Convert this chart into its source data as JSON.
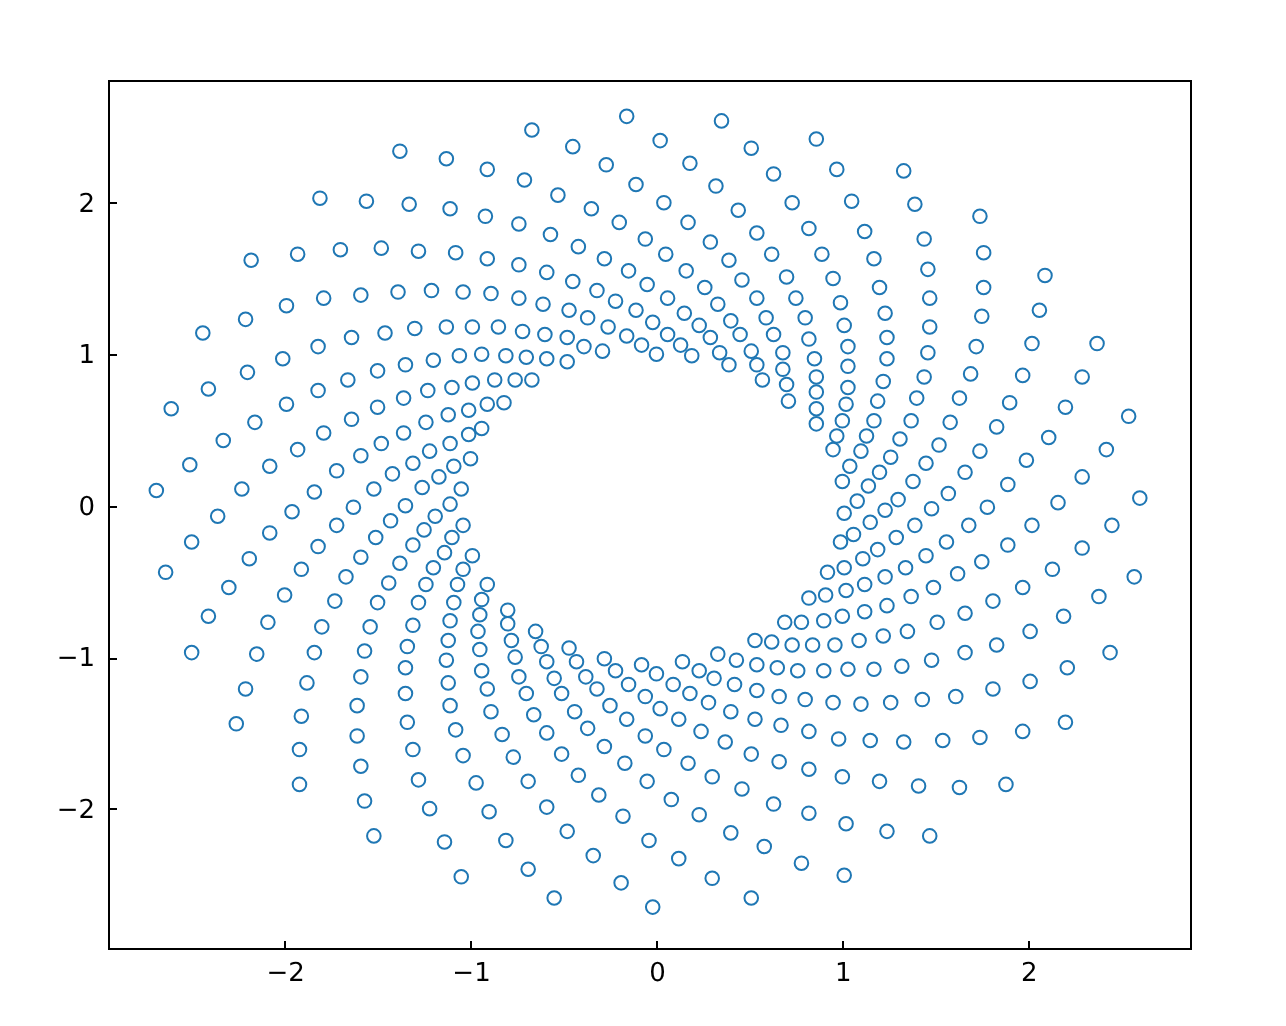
{
  "chart_data": {
    "type": "scatter",
    "color": "#1f77b4",
    "marker": "circle",
    "xlim": [
      -2.95,
      2.87
    ],
    "ylim": [
      -2.92,
      2.81
    ],
    "xticks": [
      -2,
      -1,
      0,
      1,
      2
    ],
    "yticks": [
      -2,
      -1,
      0,
      1,
      2
    ],
    "x": [
      -1.38,
      -1.13,
      -1.81,
      -1.56,
      -1.33,
      -1.11,
      -2.18,
      -1.93,
      -1.7,
      -1.48,
      -1.28,
      -1.08,
      -2.44,
      -2.21,
      -1.99,
      -1.79,
      -1.59,
      -1.39,
      -1.21,
      -1.04,
      -2.61,
      -2.41,
      -2.2,
      -2.01,
      -1.82,
      -1.64,
      -1.46,
      -1.3,
      -1.13,
      -0.99,
      -2.33,
      -2.16,
      -1.99,
      -1.82,
      -1.66,
      -1.5,
      -1.35,
      -1.2,
      -1.06,
      -2.51,
      -2.08,
      -1.93,
      -1.79,
      -1.64,
      -1.5,
      -1.36,
      -1.23,
      -1.1,
      -0.99,
      -1.01,
      -1.12,
      -1.24,
      -1.36,
      -1.48,
      -1.59,
      -1.72,
      -1.84,
      -1.01,
      -1.11,
      -1.22,
      -1.31,
      -1.42,
      -1.52,
      -1.0,
      -1.09,
      -1.17,
      -1.26,
      -1.05,
      -2.69,
      -2.23,
      -0.91,
      -0.67,
      -0.45,
      -0.16,
      0.02,
      0.35,
      0.51,
      0.86,
      -0.71,
      -0.27,
      -0.53,
      -0.11,
      0.18,
      0.32,
      0.63,
      -0.92,
      -0.74,
      -0.35,
      0.04,
      0.44,
      0.73,
      -0.57,
      -0.2,
      -0.06,
      0.17,
      0.54,
      0.82,
      -0.91,
      -0.74,
      -0.42,
      -0.28,
      0.05,
      0.29,
      0.39,
      0.62,
      0.89,
      -0.89,
      -0.59,
      -0.45,
      -0.15,
      0.16,
      0.46,
      0.7,
      0.95,
      -0.32,
      -0.05,
      0.26,
      0.54,
      0.75,
      -0.74,
      -0.61,
      -0.47,
      -0.22,
      0.06,
      0.33,
      0.59,
      0.8,
      -0.85,
      -0.72,
      -0.6,
      -0.48,
      -0.37,
      -0.26,
      -0.11,
      -0.02,
      0.15,
      0.23,
      0.4,
      0.45,
      0.63,
      0.82,
      -0.16,
      -0.39,
      -0.29,
      -0.08,
      0.06,
      0.13,
      0.29,
      0.34,
      0.51,
      0.68,
      0.85,
      0.0,
      0.19,
      0.39,
      0.54,
      0.68,
      0.86,
      -0.94,
      -0.81,
      -0.7,
      -0.59,
      -0.48,
      0.57,
      0.7,
      0.86,
      -0.87,
      -0.76,
      -0.67,
      0.71,
      0.86,
      -0.91,
      -0.82,
      0.86,
      -0.94,
      0.97,
      1.33,
      1.05,
      1.39,
      1.74,
      1.12,
      1.44,
      1.76,
      1.17,
      1.46,
      2.09,
      1.2,
      1.47,
      1.76,
      0.99,
      1.23,
      1.47,
      1.75,
      2.06,
      1.01,
      1.24,
      1.46,
      1.72,
      2.02,
      2.37,
      1.03,
      1.24,
      1.44,
      1.69,
      1.97,
      2.29,
      1.03,
      1.22,
      1.4,
      1.63,
      1.9,
      2.2,
      2.54,
      1.03,
      1.19,
      1.37,
      1.58,
      1.83,
      2.11,
      2.42,
      1.02,
      1.17,
      1.31,
      1.52,
      1.74,
      1.99,
      2.29,
      1.0,
      1.13,
      1.26,
      1.45,
      1.66,
      1.89,
      0.97,
      0.95,
      1.1,
      1.2,
      1.38,
      1.04,
      1.0,
      1.14,
      -2.36,
      -1.96,
      -1.63,
      -1.35,
      -1.19,
      -1.11,
      -2.5,
      -2.08,
      -1.72,
      -1.43,
      -1.25,
      -1.1,
      -1.04,
      -2.64,
      -2.19,
      -1.82,
      -1.51,
      -1.31,
      -1.14,
      -0.99,
      -2.3,
      -1.91,
      -1.59,
      -1.38,
      -1.2,
      -1.04,
      -2.41,
      -2.0,
      -1.67,
      -1.44,
      -1.24,
      -1.07,
      -2.09,
      -1.73,
      -1.5,
      -1.28,
      -1.09,
      -2.5,
      -2.15,
      -1.8,
      -1.54,
      -1.31,
      -1.11,
      -1.84,
      -1.57,
      -1.34,
      -1.12,
      -2.21,
      -1.88,
      -1.59,
      -1.35,
      -1.13,
      -2.26,
      -1.91,
      -1.61,
      -1.35,
      -1.12,
      -1.92,
      -1.61,
      -1.34,
      -1.11,
      -1.92,
      -1.59,
      -1.31,
      -1.08,
      -1.57,
      -1.28,
      -1.04,
      -1.52,
      -1.22,
      -1.14,
      -1.05,
      -0.97,
      -0.91,
      -0.94,
      -0.95,
      -0.96,
      -0.95,
      -0.94,
      -0.91,
      -0.89,
      -0.83,
      -0.77,
      -0.69,
      -0.59,
      -0.48,
      -0.34,
      -0.19,
      -0.02,
      -0.9,
      -0.81,
      -0.69,
      -0.55,
      -0.8,
      -0.8,
      -0.78,
      -0.76,
      -0.74,
      -0.7,
      -0.66,
      -0.59,
      -0.51,
      -0.42,
      -0.31,
      -0.18,
      -0.04,
      0.12,
      0.3,
      0.51,
      -0.65,
      -0.62,
      -0.59,
      -0.55,
      -0.51,
      -0.44,
      -0.37,
      -0.28,
      -0.17,
      -0.05,
      0.08,
      0.23,
      0.4,
      0.58,
      0.78,
      -0.47,
      -0.43,
      -0.38,
      -0.32,
      -0.25,
      -0.16,
      -0.06,
      0.04,
      0.17,
      0.3,
      0.46,
      0.63,
      0.82,
      -0.28,
      -0.22,
      -0.15,
      -0.06,
      0.02,
      0.12,
      0.24,
      0.37,
      0.51,
      0.66,
      0.82,
      -0.08,
      0.0,
      0.09,
      0.18,
      0.28,
      0.4,
      0.53,
      0.67,
      0.82,
      0.14,
      0.23,
      0.31,
      0.42,
      0.54,
      0.66,
      0.8,
      0.33,
      0.43,
      0.54,
      0.65,
      0.76,
      0.9,
      0.53,
      0.62,
      0.73,
      0.84,
      0.69,
      0.78,
      0.9,
      0.82,
      0.91,
      0.92,
      1.01,
      1.08,
      1.3,
      1.57,
      1.48,
      1.78,
      2.16,
      2.6,
      0.99,
      1.06,
      1.15,
      1.23,
      1.29,
      1.39,
      1.68,
      2.02,
      2.45,
      1.01,
      1.11,
      1.19,
      1.34,
      1.45,
      1.56,
      1.75,
      1.89,
      2.29,
      1.02,
      1.12,
      1.23,
      1.37,
      1.49,
      1.62,
      1.81,
      1.97,
      2.13,
      2.57,
      1.0,
      1.12,
      1.24,
      1.51,
      1.66,
      2.01,
      2.19,
      2.38,
      0.96,
      1.09,
      1.22,
      1.35,
      1.48,
      1.66,
      1.83,
      2.21,
      2.44,
      1.03,
      1.17,
      1.32,
      1.61,
      1.81,
      2.01,
      2.2,
      0.95,
      1.1,
      1.26,
      1.43,
      0.98,
      1.15,
      1.33,
      1.54,
      1.74,
      1.97,
      1.0,
      1.2,
      1.41,
      1.63,
      1.88,
      1.02,
      1.24,
      1.47,
      1.01
    ],
    "values": [
      2.34,
      2.29,
      2.03,
      2.01,
      1.99,
      1.96,
      1.62,
      1.66,
      1.69,
      1.7,
      1.68,
      1.67,
      1.14,
      1.23,
      1.32,
      1.37,
      1.39,
      1.41,
      1.42,
      1.41,
      0.64,
      0.77,
      0.88,
      0.97,
      1.05,
      1.11,
      1.14,
      1.17,
      1.18,
      1.18,
      0.43,
      0.55,
      0.67,
      0.76,
      0.83,
      0.89,
      0.93,
      0.96,
      0.99,
      0.27,
      0.26,
      0.37,
      0.48,
      0.57,
      0.65,
      0.71,
      0.76,
      0.78,
      0.81,
      0.63,
      0.6,
      0.55,
      0.48,
      0.41,
      0.33,
      0.23,
      0.09,
      0.47,
      0.41,
      0.36,
      0.28,
      0.21,
      0.11,
      0.31,
      0.26,
      0.19,
      0.12,
      0.11,
      0.1,
      0.11,
      2.22,
      2.48,
      2.37,
      2.57,
      2.41,
      2.54,
      2.36,
      2.42,
      2.15,
      2.25,
      2.05,
      2.12,
      2.26,
      2.11,
      2.19,
      1.91,
      1.86,
      1.96,
      2.0,
      1.95,
      2.0,
      1.79,
      1.87,
      1.76,
      1.87,
      1.8,
      1.83,
      1.63,
      1.59,
      1.71,
      1.63,
      1.66,
      1.74,
      1.62,
      1.66,
      1.66,
      1.4,
      1.54,
      1.48,
      1.55,
      1.55,
      1.49,
      1.51,
      1.5,
      1.42,
      1.46,
      1.44,
      1.37,
      1.37,
      1.37,
      1.33,
      1.29,
      1.35,
      1.37,
      1.33,
      1.24,
      1.24,
      1.18,
      1.15,
      1.13,
      1.11,
      1.24,
      1.18,
      1.29,
      1.21,
      1.27,
      1.19,
      1.22,
      1.13,
      1.13,
      1.1,
      1.12,
      1.05,
      1.02,
      1.06,
      1.13,
      1.06,
      1.11,
      1.01,
      1.02,
      1.01,
      0.97,
      1.0,
      0.99,
      0.93,
      0.93,
      0.9,
      0.85,
      1.0,
      0.99,
      0.98,
      0.97,
      0.95,
      0.83,
      0.8,
      0.75,
      0.83,
      0.83,
      0.83,
      0.69,
      0.64,
      0.67,
      0.68,
      0.54,
      0.51,
      2.22,
      2.21,
      2.01,
      1.99,
      1.91,
      1.81,
      1.76,
      1.67,
      1.63,
      1.56,
      1.52,
      1.44,
      1.37,
      1.44,
      1.34,
      1.27,
      1.18,
      1.25,
      1.29,
      1.19,
      1.11,
      1.01,
      1.05,
      1.07,
      1.07,
      1.05,
      0.97,
      0.85,
      0.87,
      0.86,
      0.85,
      0.92,
      0.82,
      0.71,
      0.71,
      0.68,
      0.65,
      0.59,
      0.78,
      0.69,
      0.56,
      0.55,
      0.52,
      0.45,
      0.37,
      0.67,
      0.56,
      0.44,
      0.4,
      0.36,
      0.3,
      0.19,
      0.56,
      0.46,
      0.32,
      0.28,
      0.22,
      0.14,
      0.46,
      0.37,
      0.36,
      0.22,
      0.16,
      0.26,
      0.16,
      0.13,
      -0.07,
      -0.04,
      -0.01,
      0.0,
      -0.07,
      0.01,
      -0.24,
      -0.18,
      -0.13,
      -0.1,
      -0.16,
      -0.21,
      -0.13,
      -0.44,
      -0.35,
      -0.27,
      -0.21,
      -0.26,
      -0.31,
      -0.33,
      -0.54,
      -0.42,
      -0.34,
      -0.38,
      -0.41,
      -0.42,
      -0.73,
      -0.59,
      -0.47,
      -0.51,
      -0.52,
      -0.52,
      -0.77,
      -0.63,
      -0.64,
      -0.64,
      -0.64,
      -0.97,
      -0.98,
      -0.8,
      -0.8,
      -0.79,
      -0.76,
      -0.97,
      -0.96,
      -0.93,
      -0.89,
      -1.21,
      -1.17,
      -1.13,
      -1.07,
      -1.02,
      -1.44,
      -1.39,
      -1.32,
      -1.24,
      -1.17,
      -1.61,
      -1.52,
      -1.43,
      -1.32,
      -1.84,
      -1.72,
      -1.61,
      -1.48,
      -1.95,
      -1.81,
      -1.65,
      -2.18,
      -2.0,
      -2.22,
      -2.45,
      -1.83,
      -0.52,
      -0.62,
      -0.72,
      -0.83,
      -0.95,
      -1.09,
      -1.21,
      -1.36,
      -1.51,
      -1.66,
      -1.82,
      -1.99,
      -2.15,
      -2.31,
      -2.49,
      -2.65,
      -2.02,
      -2.21,
      -2.4,
      -2.59,
      -0.69,
      -0.78,
      -0.89,
      -1.0,
      -1.13,
      -1.24,
      -1.38,
      -1.5,
      -1.64,
      -1.78,
      -1.91,
      -2.05,
      -2.21,
      -2.33,
      -2.46,
      -2.59,
      -0.83,
      -0.93,
      -1.03,
      -1.14,
      -1.24,
      -1.36,
      -1.47,
      -1.59,
      -1.7,
      -1.82,
      -1.94,
      -2.04,
      -2.16,
      -2.25,
      -2.36,
      -0.94,
      -1.03,
      -1.13,
      -1.21,
      -1.32,
      -1.41,
      -1.52,
      -1.61,
      -1.7,
      -1.79,
      -1.87,
      -1.97,
      -2.03,
      -1.01,
      -1.09,
      -1.18,
      -1.26,
      -1.34,
      -1.41,
      -1.49,
      -1.56,
      -1.64,
      -1.69,
      -1.74,
      -1.05,
      -1.11,
      -1.18,
      -1.24,
      -1.3,
      -1.36,
      -1.41,
      -1.45,
      -1.49,
      -1.03,
      -1.09,
      -1.14,
      -1.18,
      -1.22,
      -1.26,
      -1.28,
      -0.98,
      -1.02,
      -1.05,
      -1.07,
      -1.09,
      -1.09,
      -0.89,
      -0.9,
      -0.92,
      -0.92,
      -0.77,
      -0.77,
      -0.76,
      -0.61,
      -0.59,
      -0.44,
      -0.05,
      0.03,
      0.04,
      0.08,
      -0.02,
      -0.01,
      0.02,
      0.05,
      -0.24,
      -0.19,
      -0.11,
      -0.03,
      -0.21,
      -0.13,
      -0.13,
      -0.13,
      -0.13,
      -0.41,
      -0.35,
      -0.29,
      -0.41,
      -0.33,
      -0.24,
      -0.37,
      -0.26,
      -0.28,
      -0.56,
      -0.52,
      -0.47,
      -0.6,
      -0.54,
      -0.45,
      -0.63,
      -0.54,
      -0.42,
      -0.47,
      -0.73,
      -0.7,
      -0.66,
      -0.77,
      -0.71,
      -0.83,
      -0.73,
      -0.6,
      -0.92,
      -0.89,
      -0.86,
      -0.83,
      -1.02,
      -0.97,
      -0.92,
      -1.07,
      -0.97,
      -1.08,
      -1.08,
      -1.06,
      -1.26,
      -1.21,
      -1.16,
      -1.43,
      -1.3,
      -1.31,
      -1.3,
      -1.28,
      -1.54,
      -1.55,
      -1.56,
      -1.55,
      -1.53,
      -1.49,
      -1.79,
      -1.82,
      -1.85,
      -1.86,
      -1.84,
      -2.1,
      -2.15,
      -2.18,
      -2.44
    ]
  }
}
